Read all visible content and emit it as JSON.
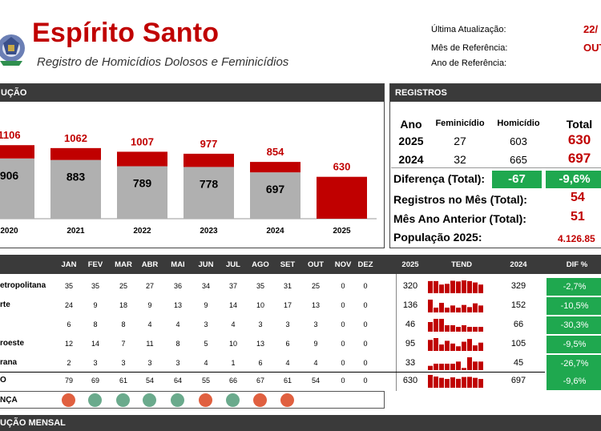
{
  "header": {
    "title": "Espírito Santo",
    "subtitle": "Registro de Homicídios Dolosos e Feminicídios",
    "meta": [
      {
        "label": "Última Atualização:",
        "value": "22/"
      },
      {
        "label": "Mês de Referência:",
        "value": "OUT"
      },
      {
        "label": "Ano de Referência:",
        "value": ""
      }
    ]
  },
  "evolucao": {
    "section_title": "UÇÃO"
  },
  "chart_data": {
    "type": "bar",
    "stacked": true,
    "categories": [
      "2020",
      "2021",
      "2022",
      "2023",
      "2024",
      "2025"
    ],
    "series": [
      {
        "values": [
          906,
          883,
          789,
          778,
          697,
          null
        ],
        "color": "#b0b0b0"
      },
      {
        "values": [
          200,
          179,
          218,
          199,
          157,
          630
        ],
        "color": "#c00000"
      }
    ],
    "totals": [
      1106,
      1062,
      1007,
      977,
      854,
      630
    ],
    "inner_labels": [
      "906",
      "883",
      "789",
      "778",
      "697",
      ""
    ],
    "ylim": [
      0,
      1200
    ],
    "grid": false
  },
  "registros": {
    "section_title": "REGISTROS",
    "headers": [
      "Ano",
      "Feminicídio",
      "Homicídio",
      "Total"
    ],
    "rows": [
      {
        "ano": "2025",
        "feminicidio": "27",
        "homicidio": "603",
        "total": "630"
      },
      {
        "ano": "2024",
        "feminicidio": "32",
        "homicidio": "665",
        "total": "697"
      }
    ],
    "diferenca_label": "Diferença (Total):",
    "diferenca_abs": "-67",
    "diferenca_pct": "-9,6%",
    "mes_label": "Registros no Mês (Total):",
    "mes_value": "54",
    "mes_anterior_label": "Mês Ano Anterior (Total):",
    "mes_anterior_value": "51",
    "populacao_label": "População 2025:",
    "populacao_value": "4.126.85"
  },
  "monthly": {
    "months": [
      "JAN",
      "FEV",
      "MAR",
      "ABR",
      "MAI",
      "JUN",
      "JUL",
      "AGO",
      "SET",
      "OUT",
      "NOV",
      "DEZ"
    ],
    "col_2025": "2025",
    "col_tend": "TEND",
    "col_2024": "2024",
    "col_dif": "DIF %",
    "rows": [
      {
        "region": "etropolitana",
        "values": [
          "35",
          "35",
          "25",
          "27",
          "36",
          "34",
          "37",
          "35",
          "31",
          "25",
          "0",
          "0"
        ],
        "y2025": "320",
        "y2024": "329",
        "dif": "-2,7%",
        "spark": [
          35,
          35,
          25,
          27,
          36,
          34,
          37,
          35,
          31,
          25
        ]
      },
      {
        "region": "rte",
        "values": [
          "24",
          "9",
          "18",
          "9",
          "13",
          "9",
          "14",
          "10",
          "17",
          "13",
          "0",
          "0"
        ],
        "y2025": "136",
        "y2024": "152",
        "dif": "-10,5%",
        "spark": [
          24,
          9,
          18,
          9,
          13,
          9,
          14,
          10,
          17,
          13
        ]
      },
      {
        "region": "",
        "values": [
          "6",
          "8",
          "8",
          "4",
          "4",
          "3",
          "4",
          "3",
          "3",
          "3",
          "0",
          "0"
        ],
        "y2025": "46",
        "y2024": "66",
        "dif": "-30,3%",
        "spark": [
          6,
          8,
          8,
          4,
          4,
          3,
          4,
          3,
          3,
          3
        ]
      },
      {
        "region": "roeste",
        "values": [
          "12",
          "14",
          "7",
          "11",
          "8",
          "5",
          "10",
          "13",
          "6",
          "9",
          "0",
          "0"
        ],
        "y2025": "95",
        "y2024": "105",
        "dif": "-9,5%",
        "spark": [
          12,
          14,
          7,
          11,
          8,
          5,
          10,
          13,
          6,
          9
        ]
      },
      {
        "region": "rana",
        "values": [
          "2",
          "3",
          "3",
          "3",
          "3",
          "4",
          "1",
          "6",
          "4",
          "4",
          "0",
          "0"
        ],
        "y2025": "33",
        "y2024": "45",
        "dif": "-26,7%",
        "spark": [
          2,
          3,
          3,
          3,
          3,
          4,
          1,
          6,
          4,
          4
        ]
      }
    ],
    "total": {
      "region": "O",
      "values": [
        "79",
        "69",
        "61",
        "54",
        "64",
        "55",
        "66",
        "67",
        "61",
        "54",
        "0",
        "0"
      ],
      "y2025": "630",
      "y2024": "697",
      "dif": "-9,6%",
      "spark": [
        79,
        69,
        61,
        54,
        64,
        55,
        66,
        67,
        61,
        54
      ]
    },
    "trend_label": "NÇA",
    "trend_dots": [
      "#e06040",
      "#6aaa8c",
      "#6aaa8c",
      "#6aaa8c",
      "#6aaa8c",
      "#e06040",
      "#6aaa8c",
      "#e06040",
      "#e06040"
    ]
  },
  "footer": {
    "section_title": "UÇÃO MENSAL"
  },
  "colors": {
    "accent_red": "#c00000",
    "green": "#1fa84f",
    "bar_gray": "#b0b0b0",
    "header_dark": "#3a3a3a"
  }
}
